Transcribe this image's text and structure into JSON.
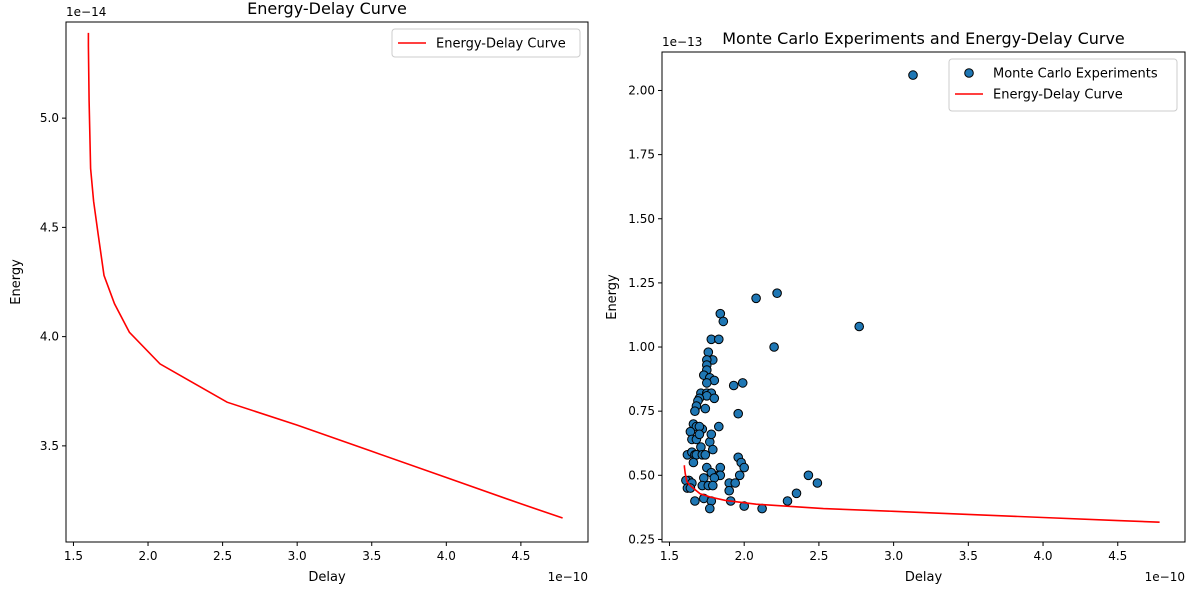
{
  "chart_data": [
    {
      "type": "line",
      "title": "Energy-Delay Curve",
      "xlabel": "Delay",
      "ylabel": "Energy",
      "x_offset_text": "1e−10",
      "y_offset_text": "1e−14",
      "xlim": [
        1.45,
        4.95
      ],
      "ylim": [
        3.06,
        5.44
      ],
      "xticks": [
        1.5,
        2.0,
        2.5,
        3.0,
        3.5,
        4.0,
        4.5
      ],
      "xtick_labels": [
        "1.5",
        "2.0",
        "2.5",
        "3.0",
        "3.5",
        "4.0",
        "4.5"
      ],
      "yticks": [
        3.5,
        4.0,
        4.5,
        5.0
      ],
      "ytick_labels": [
        "3.5",
        "4.0",
        "4.5",
        "5.0"
      ],
      "grid": false,
      "legend_position": "top-right",
      "series": [
        {
          "name": "Energy-Delay Curve",
          "kind": "line",
          "color": "#ff0000",
          "x": [
            1.6,
            1.6,
            1.605,
            1.615,
            1.635,
            1.665,
            1.705,
            1.775,
            1.875,
            2.08,
            2.53,
            3.0,
            3.5,
            4.0,
            4.5,
            4.78
          ],
          "y": [
            5.39,
            5.33,
            5.08,
            4.77,
            4.62,
            4.47,
            4.28,
            4.15,
            4.02,
            3.875,
            3.7,
            3.595,
            3.475,
            3.355,
            3.235,
            3.17
          ]
        }
      ]
    },
    {
      "type": "scatter",
      "title": "Monte Carlo Experiments and Energy-Delay Curve",
      "xlabel": "Delay",
      "ylabel": "Energy",
      "x_offset_text": "1e−10",
      "y_offset_text": "1e−13",
      "xlim": [
        1.45,
        4.95
      ],
      "ylim": [
        0.24,
        2.15
      ],
      "xticks": [
        1.5,
        2.0,
        2.5,
        3.0,
        3.5,
        4.0,
        4.5
      ],
      "xtick_labels": [
        "1.5",
        "2.0",
        "2.5",
        "3.0",
        "3.5",
        "4.0",
        "4.5"
      ],
      "yticks": [
        0.25,
        0.5,
        0.75,
        1.0,
        1.25,
        1.5,
        1.75,
        2.0
      ],
      "ytick_labels": [
        "0.25",
        "0.50",
        "0.75",
        "1.00",
        "1.25",
        "1.50",
        "1.75",
        "2.00"
      ],
      "grid": false,
      "legend_position": "top-right",
      "series": [
        {
          "name": "Monte Carlo Experiments",
          "kind": "scatter",
          "color": "#1f77b4",
          "edge_color": "#000000",
          "x": [
            3.13,
            2.22,
            2.08,
            2.77,
            1.84,
            1.86,
            1.78,
            1.83,
            2.2,
            1.76,
            1.79,
            1.75,
            1.75,
            1.75,
            1.73,
            1.77,
            1.8,
            1.75,
            1.71,
            1.75,
            1.78,
            1.75,
            1.7,
            1.69,
            1.8,
            1.93,
            1.99,
            1.74,
            1.96,
            1.68,
            1.67,
            1.83,
            1.72,
            1.66,
            1.68,
            1.7,
            1.64,
            1.65,
            1.68,
            1.7,
            1.71,
            1.77,
            1.78,
            1.62,
            1.65,
            1.67,
            1.68,
            1.72,
            1.74,
            1.79,
            1.96,
            1.98,
            1.66,
            1.75,
            1.84,
            2.0,
            1.63,
            1.78,
            1.83,
            1.84,
            1.73,
            1.8,
            1.9,
            1.94,
            1.61,
            1.65,
            1.72,
            1.76,
            1.62,
            1.79,
            1.97,
            2.43,
            2.49,
            1.9,
            1.73,
            1.78,
            1.64,
            2.35,
            1.91,
            2.29,
            2.0,
            2.12,
            1.77,
            1.67
          ],
          "y": [
            2.06,
            1.21,
            1.19,
            1.08,
            1.13,
            1.1,
            1.03,
            1.03,
            1.0,
            0.98,
            0.95,
            0.95,
            0.93,
            0.91,
            0.89,
            0.88,
            0.87,
            0.86,
            0.82,
            0.82,
            0.82,
            0.81,
            0.8,
            0.79,
            0.8,
            0.85,
            0.86,
            0.76,
            0.74,
            0.77,
            0.75,
            0.69,
            0.68,
            0.7,
            0.69,
            0.69,
            0.67,
            0.64,
            0.64,
            0.66,
            0.61,
            0.63,
            0.66,
            0.58,
            0.59,
            0.58,
            0.58,
            0.58,
            0.58,
            0.6,
            0.57,
            0.55,
            0.55,
            0.53,
            0.53,
            0.53,
            0.48,
            0.51,
            0.5,
            0.5,
            0.49,
            0.49,
            0.47,
            0.47,
            0.48,
            0.47,
            0.46,
            0.46,
            0.45,
            0.46,
            0.5,
            0.5,
            0.47,
            0.44,
            0.41,
            0.4,
            0.45,
            0.43,
            0.4,
            0.4,
            0.38,
            0.37,
            0.37,
            0.4
          ]
        },
        {
          "name": "Energy-Delay Curve",
          "kind": "line",
          "color": "#ff0000",
          "x": [
            1.6,
            1.6,
            1.605,
            1.615,
            1.635,
            1.665,
            1.705,
            1.775,
            1.875,
            2.08,
            2.53,
            3.0,
            3.5,
            4.0,
            4.5,
            4.78
          ],
          "y": [
            0.539,
            0.533,
            0.508,
            0.477,
            0.462,
            0.447,
            0.428,
            0.415,
            0.402,
            0.3875,
            0.37,
            0.3595,
            0.3475,
            0.3355,
            0.3235,
            0.317
          ]
        }
      ]
    }
  ]
}
